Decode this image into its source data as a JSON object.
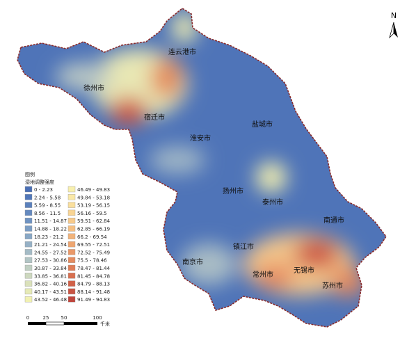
{
  "map": {
    "north": "N",
    "cities": [
      "连云港市",
      "徐州市",
      "宿迁市",
      "淮安市",
      "盐城市",
      "扬州市",
      "泰州市",
      "南通市",
      "镇江市",
      "南京市",
      "常州市",
      "无锡市",
      "苏州市"
    ],
    "legend": {
      "title": "图例",
      "subtitle": "湿地调整强度",
      "items": [
        {
          "label": "0 - 2.23",
          "color": "#4a6fb5"
        },
        {
          "label": "2.24 - 5.58",
          "color": "#5177b9"
        },
        {
          "label": "5.59 - 8.55",
          "color": "#5a80bc"
        },
        {
          "label": "8.56 - 11.5",
          "color": "#6489bf"
        },
        {
          "label": "11.51 - 14.87",
          "color": "#6f93c2"
        },
        {
          "label": "14.88 - 18.22",
          "color": "#7b9dc4"
        },
        {
          "label": "18.23 - 21.2",
          "color": "#88a7c5"
        },
        {
          "label": "21.21 - 24.54",
          "color": "#96b1c6"
        },
        {
          "label": "24.55 - 27.52",
          "color": "#a4bbc6"
        },
        {
          "label": "27.53 - 30.86",
          "color": "#b2c5c5"
        },
        {
          "label": "30.87 - 33.84",
          "color": "#c0cfc3"
        },
        {
          "label": "33.85 - 36.81",
          "color": "#cdd8bf"
        },
        {
          "label": "36.82 - 40.16",
          "color": "#dae1bb"
        },
        {
          "label": "40.17 - 43.51",
          "color": "#e6eab6"
        },
        {
          "label": "43.52 - 46.48",
          "color": "#f1f1b2"
        },
        {
          "label": "46.49 - 49.83",
          "color": "#f8f0ae"
        },
        {
          "label": "49.84 - 53.18",
          "color": "#fae8a6"
        },
        {
          "label": "53.19 - 56.15",
          "color": "#fadf9d"
        },
        {
          "label": "56.16 - 59.5",
          "color": "#f9d594"
        },
        {
          "label": "59.51 - 62.84",
          "color": "#f7ca8b"
        },
        {
          "label": "62.85 - 66.19",
          "color": "#f5bf82"
        },
        {
          "label": "66.2 - 69.54",
          "color": "#f2b37a"
        },
        {
          "label": "69.55 - 72.51",
          "color": "#eea671"
        },
        {
          "label": "72.52 - 75.49",
          "color": "#ea9969"
        },
        {
          "label": "75.5 - 78.46",
          "color": "#e58c60"
        },
        {
          "label": "78.47 - 81.44",
          "color": "#df7e58"
        },
        {
          "label": "81.45 - 84.78",
          "color": "#d87050"
        },
        {
          "label": "84.79 - 88.13",
          "color": "#d06249"
        },
        {
          "label": "88.14 - 91.48",
          "color": "#c85443"
        },
        {
          "label": "91.49 - 94.83",
          "color": "#bf463d"
        }
      ]
    },
    "scale": {
      "ticks": [
        "0",
        "25",
        "50",
        "100"
      ],
      "unit": "千米"
    }
  }
}
